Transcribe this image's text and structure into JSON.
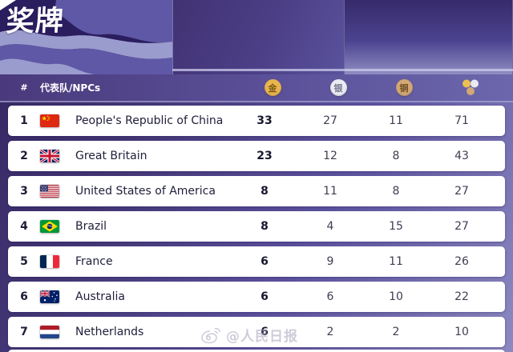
{
  "banner": {
    "title": "奖牌"
  },
  "table": {
    "header": {
      "rank_label": "#",
      "npc_label": "代表队/NPCs",
      "gold_icon_label": "金",
      "silver_icon_label": "银",
      "bronze_icon_label": "铜",
      "total_icon": "medals-cluster-icon"
    },
    "rows": [
      {
        "rank": 1,
        "flag": "cn",
        "npc": "People's Republic of China",
        "gold": 33,
        "silver": 27,
        "bronze": 11,
        "total": 71
      },
      {
        "rank": 2,
        "flag": "gb",
        "npc": "Great Britain",
        "gold": 23,
        "silver": 12,
        "bronze": 8,
        "total": 43
      },
      {
        "rank": 3,
        "flag": "us",
        "npc": "United States of America",
        "gold": 8,
        "silver": 11,
        "bronze": 8,
        "total": 27
      },
      {
        "rank": 4,
        "flag": "br",
        "npc": "Brazil",
        "gold": 8,
        "silver": 4,
        "bronze": 15,
        "total": 27
      },
      {
        "rank": 5,
        "flag": "fr",
        "npc": "France",
        "gold": 6,
        "silver": 9,
        "bronze": 11,
        "total": 26
      },
      {
        "rank": 6,
        "flag": "au",
        "npc": "Australia",
        "gold": 6,
        "silver": 6,
        "bronze": 10,
        "total": 22
      },
      {
        "rank": 7,
        "flag": "nl",
        "npc": "Netherlands",
        "gold": 6,
        "silver": 2,
        "bronze": 2,
        "total": 10
      }
    ]
  },
  "watermark": {
    "text": "@人民日报",
    "logo": "weibo-icon"
  },
  "colors": {
    "gold_medal": "#e9b54e",
    "silver_medal": "#ebecf3",
    "bronze_medal": "#d3a876",
    "banner_dark": "#2b1e5f",
    "wave_medium": "#5e58a6",
    "wave_light": "#9b9cce",
    "row_card": "#ffffff",
    "header_text": "#ffffff"
  }
}
